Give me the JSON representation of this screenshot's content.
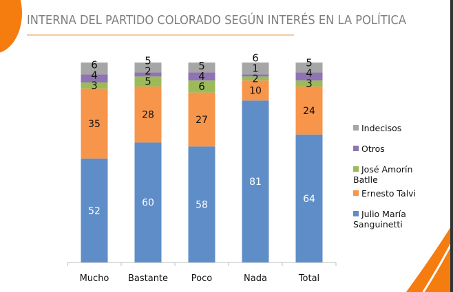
{
  "chart_data": {
    "type": "bar",
    "stacked": true,
    "title": "INTERNA DEL PARTIDO COLORADO SEGÚN INTERÉS EN LA POLÍTICA",
    "categories": [
      "Mucho",
      "Bastante",
      "Poco",
      "Nada",
      "Total"
    ],
    "ylim": [
      0,
      100
    ],
    "grid": false,
    "legend_position": "right",
    "series": [
      {
        "name": "Julio María Sanguinetti",
        "color": "#5f8dc7",
        "values": [
          52,
          60,
          58,
          81,
          64
        ]
      },
      {
        "name": "Ernesto Talvi",
        "color": "#f7954a",
        "values": [
          35,
          28,
          27,
          10,
          24
        ]
      },
      {
        "name": "José Amorín Batlle",
        "color": "#9bbb59",
        "values": [
          3,
          5,
          6,
          2,
          3
        ]
      },
      {
        "name": "Otros",
        "color": "#8e74b2",
        "values": [
          4,
          2,
          4,
          1,
          4
        ]
      },
      {
        "name": "Indecisos",
        "color": "#a6a6a6",
        "values": [
          6,
          5,
          5,
          6,
          5
        ]
      }
    ]
  },
  "accent": "#f57c0f"
}
